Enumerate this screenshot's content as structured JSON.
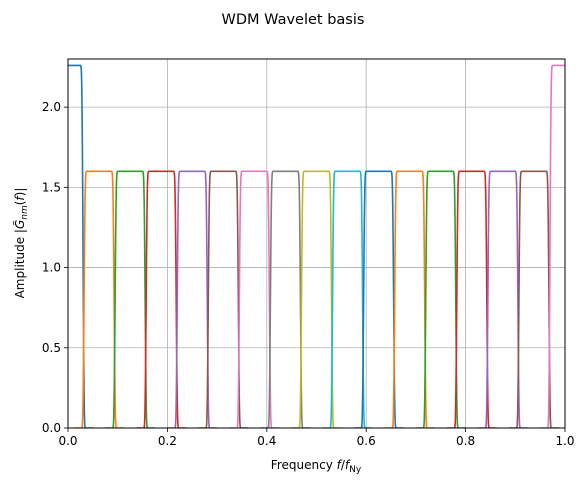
{
  "chart_data": {
    "type": "line",
    "title": "WDM Wavelet basis",
    "xlabel": "Frequency f/f_Ny",
    "ylabel": "Amplitude |G̃_nm(f)|",
    "xlim": [
      0,
      1
    ],
    "ylim": [
      0,
      2.3
    ],
    "xticks": [
      0,
      0.2,
      0.4,
      0.6,
      0.8,
      1.0
    ],
    "xtick_labels": [
      "0.0",
      "0.2",
      "0.4",
      "0.6",
      "0.8",
      "1.0"
    ],
    "yticks": [
      0,
      0.5,
      1.0,
      1.5,
      2.0
    ],
    "ytick_labels": [
      "0.0",
      "0.5",
      "1.0",
      "1.5",
      "2.0"
    ],
    "grid": true,
    "legend": "none",
    "series": [
      {
        "color": "#1f77b4",
        "center": 0.0,
        "peak": 2.26
      },
      {
        "color": "#ff7f0e",
        "center": 0.0625,
        "peak": 1.6
      },
      {
        "color": "#2ca02c",
        "center": 0.125,
        "peak": 1.6
      },
      {
        "color": "#d62728",
        "center": 0.1875,
        "peak": 1.6
      },
      {
        "color": "#9467bd",
        "center": 0.25,
        "peak": 1.6
      },
      {
        "color": "#8c564b",
        "center": 0.3125,
        "peak": 1.6
      },
      {
        "color": "#e377c2",
        "center": 0.375,
        "peak": 1.6
      },
      {
        "color": "#7f7f7f",
        "center": 0.4375,
        "peak": 1.6
      },
      {
        "color": "#bcbd22",
        "center": 0.5,
        "peak": 1.6
      },
      {
        "color": "#17becf",
        "center": 0.5625,
        "peak": 1.6
      },
      {
        "color": "#1f77b4",
        "center": 0.625,
        "peak": 1.6
      },
      {
        "color": "#ff7f0e",
        "center": 0.6875,
        "peak": 1.6
      },
      {
        "color": "#2ca02c",
        "center": 0.75,
        "peak": 1.6
      },
      {
        "color": "#d62728",
        "center": 0.8125,
        "peak": 1.6
      },
      {
        "color": "#9467bd",
        "center": 0.875,
        "peak": 1.6
      },
      {
        "color": "#8c564b",
        "center": 0.9375,
        "peak": 1.6
      },
      {
        "color": "#e377c2",
        "center": 1.0,
        "peak": 2.26
      }
    ]
  }
}
